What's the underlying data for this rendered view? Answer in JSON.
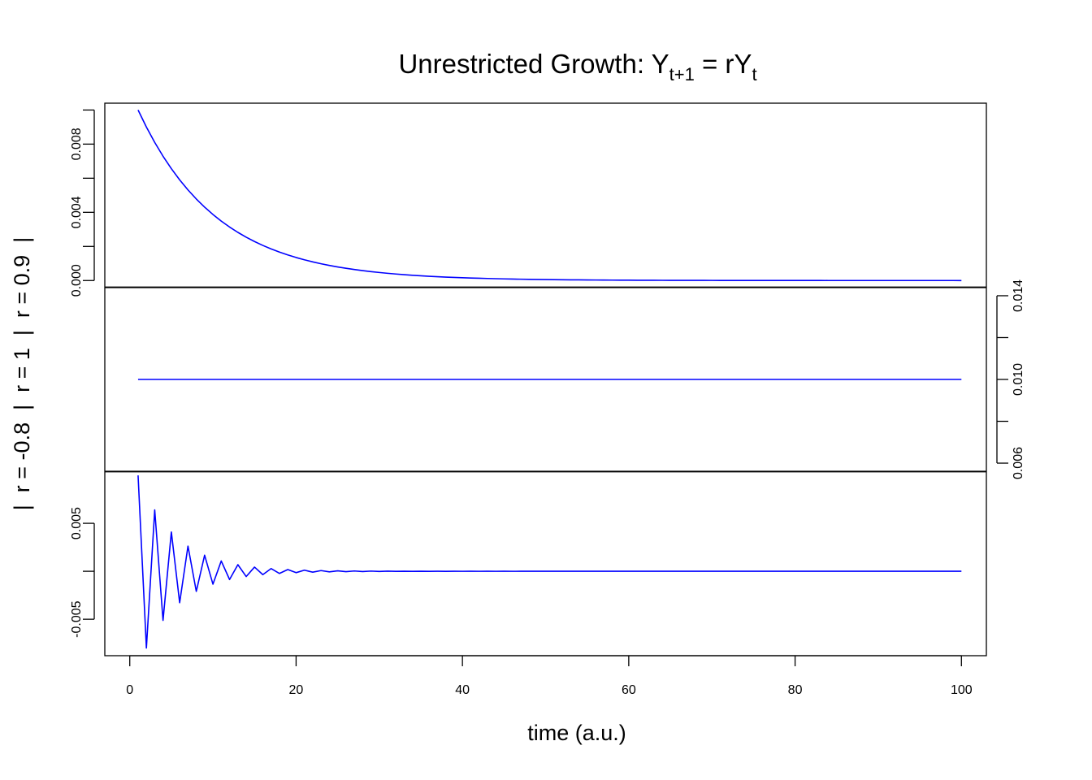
{
  "chart_data": {
    "type": "line",
    "title": {
      "prefix": "Unrestricted Growth: Y",
      "sub1": "t+1",
      "mid": " = rY",
      "sub2": "t"
    },
    "xlabel": "time (a.u.)",
    "ylabel": "|  r = -0.8  |  r = 1  |  r = 0.9  |",
    "xlim": [
      -3,
      103
    ],
    "x_ticks": [
      0,
      20,
      40,
      60,
      80,
      100
    ],
    "x_tick_labels": [
      "0",
      "20",
      "40",
      "60",
      "80",
      "100"
    ],
    "x_start": 1,
    "x_end": 100,
    "initial_value": 0.01,
    "series_color": "#0000ff",
    "panels": [
      {
        "name": "r = 0.9",
        "r": 0.9,
        "axis_side": "left",
        "ylim": [
          -0.0004,
          0.0104
        ],
        "y_ticks": [
          0.0,
          0.002,
          0.004,
          0.006,
          0.008,
          0.01
        ],
        "y_tick_labels": [
          "0.000",
          "",
          "0.004",
          "",
          "0.008",
          ""
        ]
      },
      {
        "name": "r = 1",
        "r": 1,
        "axis_side": "right",
        "ylim": [
          0.0056,
          0.0144
        ],
        "y_ticks": [
          0.006,
          0.008,
          0.01,
          0.012,
          0.014
        ],
        "y_tick_labels": [
          "0.006",
          "",
          "0.010",
          "",
          "0.014"
        ]
      },
      {
        "name": "r = -0.8",
        "r": -0.8,
        "axis_side": "left",
        "ylim": [
          -0.0088,
          0.0104
        ],
        "y_ticks": [
          -0.005,
          0.0,
          0.005
        ],
        "y_tick_labels": [
          "-0.005",
          "",
          "0.005"
        ]
      }
    ],
    "grid": false,
    "legend": "none"
  }
}
